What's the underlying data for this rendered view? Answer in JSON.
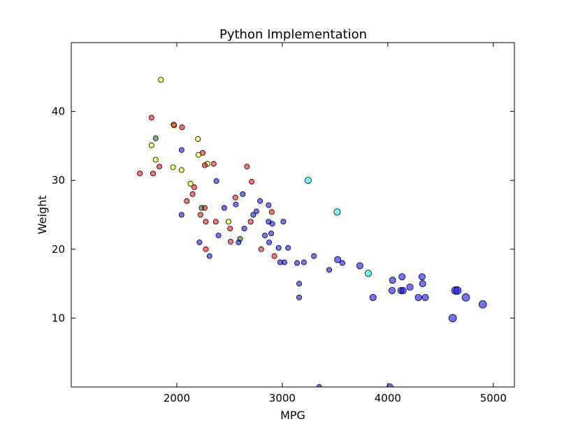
{
  "chart_data": {
    "type": "scatter",
    "title": "Python Implementation",
    "xlabel": "MPG",
    "ylabel": "Weight",
    "xlim": [
      1000,
      5200
    ],
    "ylim": [
      0,
      50
    ],
    "x_ticks": [
      2000,
      3000,
      4000,
      5000
    ],
    "y_ticks": [
      10,
      20,
      30,
      40
    ],
    "grid": false,
    "legend": "none",
    "colors": {
      "blue": "#0000ff",
      "red": "#ff0000",
      "yellow": "#ffff00",
      "green": "#008000",
      "cyan": "#00ffff"
    },
    "points": [
      {
        "x": 1850,
        "y": 44.6,
        "s": 1,
        "c": "yellow"
      },
      {
        "x": 1760,
        "y": 39.1,
        "s": 1,
        "c": "red"
      },
      {
        "x": 1970,
        "y": 38.1,
        "s": 1,
        "c": "yellow"
      },
      {
        "x": 1975,
        "y": 38.0,
        "s": 1,
        "c": "red"
      },
      {
        "x": 2050,
        "y": 37.7,
        "s": 1,
        "c": "red"
      },
      {
        "x": 1800,
        "y": 36.1,
        "s": 1,
        "c": "green"
      },
      {
        "x": 2200,
        "y": 36.0,
        "s": 1,
        "c": "yellow"
      },
      {
        "x": 1760,
        "y": 35.1,
        "s": 1,
        "c": "yellow"
      },
      {
        "x": 2045,
        "y": 34.4,
        "s": 1,
        "c": "blue"
      },
      {
        "x": 2245,
        "y": 34.0,
        "s": 1,
        "c": "red"
      },
      {
        "x": 2205,
        "y": 33.7,
        "s": 1,
        "c": "yellow"
      },
      {
        "x": 1800,
        "y": 33.0,
        "s": 1,
        "c": "yellow"
      },
      {
        "x": 2350,
        "y": 32.4,
        "s": 1,
        "c": "red"
      },
      {
        "x": 2290,
        "y": 32.4,
        "s": 1,
        "c": "yellow"
      },
      {
        "x": 2265,
        "y": 32.2,
        "s": 1,
        "c": "red"
      },
      {
        "x": 2665,
        "y": 32.0,
        "s": 1,
        "c": "red"
      },
      {
        "x": 1835,
        "y": 32.0,
        "s": 1,
        "c": "red"
      },
      {
        "x": 1965,
        "y": 31.9,
        "s": 1,
        "c": "yellow"
      },
      {
        "x": 2045,
        "y": 31.5,
        "s": 1,
        "c": "yellow"
      },
      {
        "x": 1650,
        "y": 31.0,
        "s": 1,
        "c": "red"
      },
      {
        "x": 1775,
        "y": 31.0,
        "s": 1,
        "c": "red"
      },
      {
        "x": 3245,
        "y": 30.0,
        "s": 2,
        "c": "cyan"
      },
      {
        "x": 2375,
        "y": 29.9,
        "s": 1,
        "c": "blue"
      },
      {
        "x": 2710,
        "y": 29.8,
        "s": 1,
        "c": "red"
      },
      {
        "x": 2130,
        "y": 29.5,
        "s": 1,
        "c": "yellow"
      },
      {
        "x": 2165,
        "y": 29.0,
        "s": 1,
        "c": "red"
      },
      {
        "x": 2150,
        "y": 28.0,
        "s": 1,
        "c": "red"
      },
      {
        "x": 2625,
        "y": 28.0,
        "s": 1,
        "c": "blue"
      },
      {
        "x": 2555,
        "y": 27.5,
        "s": 1,
        "c": "red"
      },
      {
        "x": 2095,
        "y": 27.0,
        "s": 1,
        "c": "red"
      },
      {
        "x": 2790,
        "y": 27.0,
        "s": 1,
        "c": "blue"
      },
      {
        "x": 2560,
        "y": 26.5,
        "s": 1,
        "c": "blue"
      },
      {
        "x": 2870,
        "y": 26.4,
        "s": 1,
        "c": "blue"
      },
      {
        "x": 2235,
        "y": 26.0,
        "s": 1,
        "c": "green"
      },
      {
        "x": 2265,
        "y": 26.0,
        "s": 1,
        "c": "red"
      },
      {
        "x": 2450,
        "y": 26.0,
        "s": 1,
        "c": "blue"
      },
      {
        "x": 2755,
        "y": 25.5,
        "s": 1,
        "c": "blue"
      },
      {
        "x": 2900,
        "y": 25.4,
        "s": 1,
        "c": "red"
      },
      {
        "x": 3520,
        "y": 25.4,
        "s": 2,
        "c": "cyan"
      },
      {
        "x": 2045,
        "y": 25.0,
        "s": 1,
        "c": "blue"
      },
      {
        "x": 2225,
        "y": 25.0,
        "s": 1,
        "c": "red"
      },
      {
        "x": 2725,
        "y": 25.0,
        "s": 1,
        "c": "blue"
      },
      {
        "x": 2275,
        "y": 24.0,
        "s": 1,
        "c": "red"
      },
      {
        "x": 2370,
        "y": 24.0,
        "s": 1,
        "c": "red"
      },
      {
        "x": 2490,
        "y": 24.0,
        "s": 1,
        "c": "yellow"
      },
      {
        "x": 2700,
        "y": 24.0,
        "s": 1,
        "c": "red"
      },
      {
        "x": 2870,
        "y": 24.0,
        "s": 1,
        "c": "blue"
      },
      {
        "x": 3010,
        "y": 24.0,
        "s": 1,
        "c": "blue"
      },
      {
        "x": 2905,
        "y": 23.7,
        "s": 1,
        "c": "blue"
      },
      {
        "x": 2505,
        "y": 23.0,
        "s": 1,
        "c": "red"
      },
      {
        "x": 2640,
        "y": 23.0,
        "s": 1,
        "c": "blue"
      },
      {
        "x": 2895,
        "y": 22.3,
        "s": 1,
        "c": "blue"
      },
      {
        "x": 2395,
        "y": 22.0,
        "s": 1,
        "c": "blue"
      },
      {
        "x": 2835,
        "y": 22.0,
        "s": 1,
        "c": "blue"
      },
      {
        "x": 2600,
        "y": 21.5,
        "s": 1,
        "c": "green"
      },
      {
        "x": 2215,
        "y": 21.0,
        "s": 1,
        "c": "blue"
      },
      {
        "x": 2510,
        "y": 21.1,
        "s": 1,
        "c": "red"
      },
      {
        "x": 2585,
        "y": 21.0,
        "s": 1,
        "c": "blue"
      },
      {
        "x": 2875,
        "y": 21.0,
        "s": 1,
        "c": "blue"
      },
      {
        "x": 2965,
        "y": 20.2,
        "s": 1,
        "c": "blue"
      },
      {
        "x": 3055,
        "y": 20.2,
        "s": 1,
        "c": "blue"
      },
      {
        "x": 2800,
        "y": 20.0,
        "s": 1,
        "c": "red"
      },
      {
        "x": 2275,
        "y": 20.0,
        "s": 1,
        "c": "red"
      },
      {
        "x": 2310,
        "y": 19.0,
        "s": 1,
        "c": "blue"
      },
      {
        "x": 2925,
        "y": 19.0,
        "s": 1,
        "c": "red"
      },
      {
        "x": 3300,
        "y": 19.0,
        "s": 1,
        "c": "blue"
      },
      {
        "x": 3525,
        "y": 18.5,
        "s": 2,
        "c": "blue"
      },
      {
        "x": 2980,
        "y": 18.1,
        "s": 1,
        "c": "blue"
      },
      {
        "x": 3020,
        "y": 18.1,
        "s": 1,
        "c": "blue"
      },
      {
        "x": 3140,
        "y": 18.0,
        "s": 1,
        "c": "blue"
      },
      {
        "x": 3205,
        "y": 18.1,
        "s": 1,
        "c": "blue"
      },
      {
        "x": 3570,
        "y": 18.0,
        "s": 1,
        "c": "blue"
      },
      {
        "x": 3735,
        "y": 17.6,
        "s": 2,
        "c": "blue"
      },
      {
        "x": 3445,
        "y": 17.0,
        "s": 1,
        "c": "blue"
      },
      {
        "x": 3815,
        "y": 16.5,
        "s": 2,
        "c": "cyan"
      },
      {
        "x": 4135,
        "y": 16.0,
        "s": 2,
        "c": "blue"
      },
      {
        "x": 4325,
        "y": 16.0,
        "s": 2,
        "c": "blue"
      },
      {
        "x": 4045,
        "y": 15.5,
        "s": 2,
        "c": "blue"
      },
      {
        "x": 3160,
        "y": 15.0,
        "s": 1,
        "c": "blue"
      },
      {
        "x": 4330,
        "y": 15.0,
        "s": 2,
        "c": "blue"
      },
      {
        "x": 4210,
        "y": 14.5,
        "s": 2,
        "c": "blue"
      },
      {
        "x": 4040,
        "y": 14.0,
        "s": 2,
        "c": "blue"
      },
      {
        "x": 4125,
        "y": 14.0,
        "s": 2,
        "c": "blue"
      },
      {
        "x": 4145,
        "y": 14.0,
        "s": 2,
        "c": "blue"
      },
      {
        "x": 4640,
        "y": 14.0,
        "s": 3,
        "c": "blue"
      },
      {
        "x": 4660,
        "y": 14.0,
        "s": 3,
        "c": "blue"
      },
      {
        "x": 3160,
        "y": 13.0,
        "s": 1,
        "c": "blue"
      },
      {
        "x": 3860,
        "y": 13.0,
        "s": 2,
        "c": "blue"
      },
      {
        "x": 4290,
        "y": 13.0,
        "s": 2,
        "c": "blue"
      },
      {
        "x": 4355,
        "y": 13.0,
        "s": 2,
        "c": "blue"
      },
      {
        "x": 4740,
        "y": 13.0,
        "s": 3,
        "c": "blue"
      },
      {
        "x": 4900,
        "y": 12.0,
        "s": 3,
        "c": "blue"
      },
      {
        "x": 4615,
        "y": 10.0,
        "s": 3,
        "c": "blue"
      },
      {
        "x": 3350,
        "y": 0.0,
        "s": 1,
        "c": "blue"
      },
      {
        "x": 4020,
        "y": 0.0,
        "s": 2,
        "c": "blue"
      }
    ]
  }
}
